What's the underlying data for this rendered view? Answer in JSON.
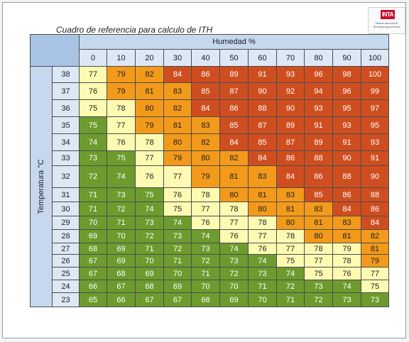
{
  "title": "Cuadro de referencia para calculo de ITH",
  "logo": {
    "badge": "INTA",
    "text": "Instituto Nacional de Tecnología Agropecuaria"
  },
  "table": {
    "humidity_label": "Humedad %",
    "temperature_label": "Temperatura °C",
    "humidity": [
      "0",
      "10",
      "20",
      "30",
      "40",
      "50",
      "60",
      "70",
      "80",
      "90",
      "100"
    ],
    "rows": [
      {
        "temp": "38",
        "values": [
          "77",
          "79",
          "82",
          "84",
          "86",
          "89",
          "91",
          "93",
          "96",
          "98",
          "100"
        ],
        "colors": [
          "y",
          "o",
          "o",
          "r",
          "r",
          "r",
          "r",
          "r",
          "r",
          "r",
          "r"
        ]
      },
      {
        "temp": "37",
        "values": [
          "76",
          "79",
          "81",
          "83",
          "85",
          "87",
          "90",
          "92",
          "94",
          "96",
          "99"
        ],
        "colors": [
          "y",
          "o",
          "o",
          "o",
          "r",
          "r",
          "r",
          "r",
          "r",
          "r",
          "r"
        ]
      },
      {
        "temp": "36",
        "values": [
          "75",
          "78",
          "80",
          "82",
          "84",
          "86",
          "88",
          "90",
          "93",
          "95",
          "97"
        ],
        "colors": [
          "y",
          "y",
          "o",
          "o",
          "r",
          "r",
          "r",
          "r",
          "r",
          "r",
          "r"
        ]
      },
      {
        "temp": "35",
        "values": [
          "75",
          "77",
          "79",
          "81",
          "83",
          "85",
          "87",
          "89",
          "91",
          "93",
          "95"
        ],
        "colors": [
          "g",
          "y",
          "o",
          "o",
          "o",
          "r",
          "r",
          "r",
          "r",
          "r",
          "r"
        ]
      },
      {
        "temp": "34",
        "values": [
          "74",
          "76",
          "78",
          "80",
          "82",
          "84",
          "85",
          "87",
          "89",
          "91",
          "93"
        ],
        "colors": [
          "g",
          "y",
          "y",
          "o",
          "o",
          "r",
          "r",
          "r",
          "r",
          "r",
          "r"
        ]
      },
      {
        "temp": "33",
        "values": [
          "73",
          "75",
          "77",
          "79",
          "80",
          "82",
          "84",
          "86",
          "88",
          "90",
          "91"
        ],
        "colors": [
          "g",
          "g",
          "y",
          "o",
          "o",
          "o",
          "r",
          "r",
          "r",
          "r",
          "r"
        ]
      },
      {
        "temp": "32",
        "values": [
          "72",
          "74",
          "76",
          "77",
          "79",
          "81",
          "83",
          "84",
          "86",
          "88",
          "90"
        ],
        "colors": [
          "g",
          "g",
          "y",
          "y",
          "o",
          "o",
          "o",
          "r",
          "r",
          "r",
          "r"
        ]
      },
      {
        "temp": "31",
        "values": [
          "71",
          "73",
          "75",
          "76",
          "78",
          "80",
          "81",
          "83",
          "85",
          "86",
          "88"
        ],
        "colors": [
          "g",
          "g",
          "g",
          "y",
          "y",
          "o",
          "o",
          "o",
          "r",
          "r",
          "r"
        ]
      },
      {
        "temp": "30",
        "values": [
          "71",
          "72",
          "74",
          "75",
          "77",
          "78",
          "80",
          "81",
          "83",
          "84",
          "86"
        ],
        "colors": [
          "g",
          "g",
          "g",
          "y",
          "y",
          "y",
          "o",
          "o",
          "o",
          "r",
          "r"
        ]
      },
      {
        "temp": "29",
        "values": [
          "70",
          "71",
          "73",
          "74",
          "76",
          "77",
          "78",
          "80",
          "81",
          "83",
          "84"
        ],
        "colors": [
          "g",
          "g",
          "g",
          "g",
          "y",
          "y",
          "y",
          "o",
          "o",
          "o",
          "r"
        ]
      },
      {
        "temp": "28",
        "values": [
          "69",
          "70",
          "72",
          "73",
          "74",
          "76",
          "77",
          "78",
          "80",
          "81",
          "82"
        ],
        "colors": [
          "g",
          "g",
          "g",
          "g",
          "g",
          "y",
          "y",
          "y",
          "o",
          "o",
          "o"
        ]
      },
      {
        "temp": "27",
        "values": [
          "68",
          "69",
          "71",
          "72",
          "73",
          "74",
          "76",
          "77",
          "78",
          "79",
          "81"
        ],
        "colors": [
          "g",
          "g",
          "g",
          "g",
          "g",
          "g",
          "y",
          "y",
          "y",
          "y",
          "o"
        ]
      },
      {
        "temp": "26",
        "values": [
          "67",
          "69",
          "70",
          "71",
          "72",
          "73",
          "74",
          "75",
          "77",
          "78",
          "79"
        ],
        "colors": [
          "g",
          "g",
          "g",
          "g",
          "g",
          "g",
          "g",
          "y",
          "y",
          "y",
          "o"
        ]
      },
      {
        "temp": "25",
        "values": [
          "67",
          "68",
          "69",
          "70",
          "71",
          "72",
          "73",
          "74",
          "75",
          "76",
          "77"
        ],
        "colors": [
          "g",
          "g",
          "g",
          "g",
          "g",
          "g",
          "g",
          "g",
          "y",
          "y",
          "y"
        ]
      },
      {
        "temp": "24",
        "values": [
          "66",
          "67",
          "68",
          "69",
          "70",
          "70",
          "71",
          "72",
          "73",
          "74",
          "75"
        ],
        "colors": [
          "g",
          "g",
          "g",
          "g",
          "g",
          "g",
          "g",
          "g",
          "g",
          "g",
          "y"
        ]
      },
      {
        "temp": "23",
        "values": [
          "65",
          "66",
          "67",
          "67",
          "68",
          "69",
          "70",
          "71",
          "72",
          "73",
          "73"
        ],
        "colors": [
          "g",
          "g",
          "g",
          "g",
          "g",
          "g",
          "g",
          "g",
          "g",
          "g",
          "g"
        ]
      }
    ]
  }
}
